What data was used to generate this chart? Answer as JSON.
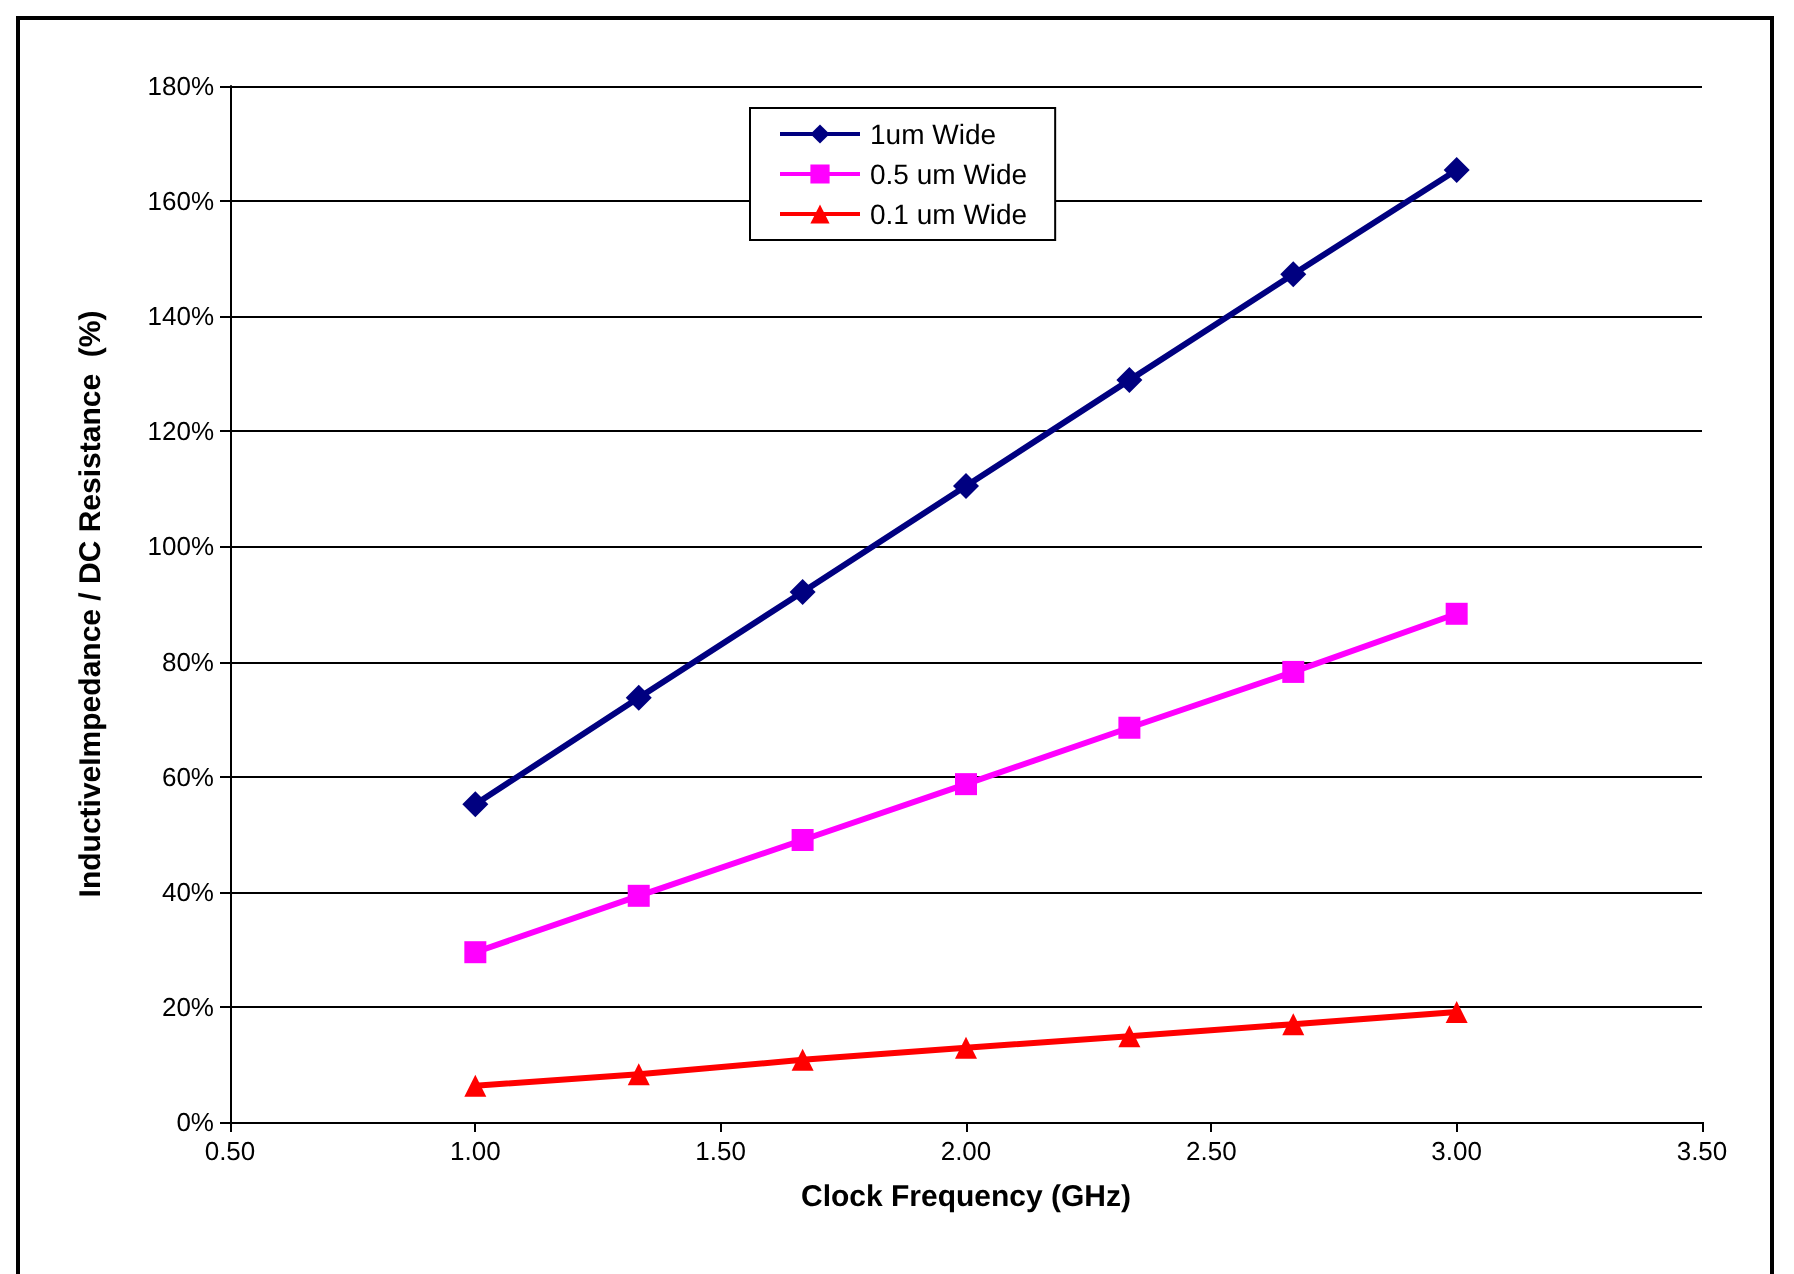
{
  "chart_data": {
    "type": "line",
    "xlabel": "Clock Frequency (GHz)",
    "ylabel": "InductiveImpedance / DC Resistance  (%)",
    "x": [
      1.0,
      1.333,
      1.667,
      2.0,
      2.333,
      2.667,
      3.0
    ],
    "series": [
      {
        "name": "1um Wide",
        "color": "#000080",
        "marker": "diamond",
        "values": [
          55.2,
          73.7,
          92.1,
          110.5,
          128.9,
          147.3,
          165.4
        ]
      },
      {
        "name": "0.5 um Wide",
        "color": "#ff00ff",
        "marker": "square",
        "values": [
          29.5,
          39.3,
          49.0,
          58.7,
          68.5,
          78.2,
          88.3
        ]
      },
      {
        "name": "0.1 um Wide",
        "color": "#ff0000",
        "marker": "triangle",
        "values": [
          6.3,
          8.3,
          10.8,
          12.9,
          14.9,
          17.0,
          19.1
        ]
      }
    ],
    "xlim": [
      0.5,
      3.5
    ],
    "xticks": [
      {
        "value": 0.5,
        "label": "0.50"
      },
      {
        "value": 1.0,
        "label": "1.00"
      },
      {
        "value": 1.5,
        "label": "1.50"
      },
      {
        "value": 2.0,
        "label": "2.00"
      },
      {
        "value": 2.5,
        "label": "2.50"
      },
      {
        "value": 3.0,
        "label": "3.00"
      },
      {
        "value": 3.5,
        "label": "3.50"
      }
    ],
    "ylim": [
      0,
      180
    ],
    "yticks": [
      {
        "value": 0,
        "label": "0%"
      },
      {
        "value": 20,
        "label": "20%"
      },
      {
        "value": 40,
        "label": "40%"
      },
      {
        "value": 60,
        "label": "60%"
      },
      {
        "value": 80,
        "label": "80%"
      },
      {
        "value": 100,
        "label": "100%"
      },
      {
        "value": 120,
        "label": "120%"
      },
      {
        "value": 140,
        "label": "140%"
      },
      {
        "value": 160,
        "label": "160%"
      },
      {
        "value": 180,
        "label": "180%"
      }
    ],
    "grid": "y",
    "legend": "top",
    "line_style": "solid"
  }
}
